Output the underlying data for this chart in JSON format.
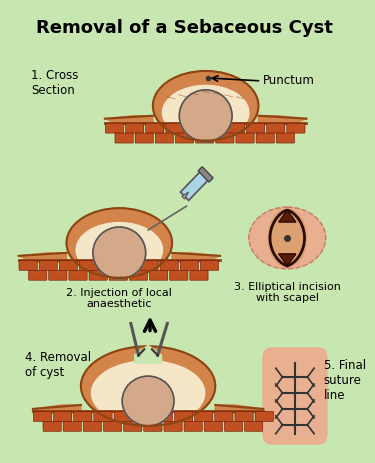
{
  "title": "Removal of a Sebaceous Cyst",
  "background_color": "#c8e6b0",
  "title_fontsize": 13,
  "title_fontweight": "bold",
  "labels": {
    "step1": "1. Cross\nSection",
    "step2": "2. Injection of local\nanaesthetic",
    "step3": "3. Elliptical incision\nwith scapel",
    "step4": "4. Removal\nof cyst",
    "step5": "5. Final\nsuture\nline"
  },
  "punctum_label": "Punctum",
  "skin_color": "#d2844a",
  "cyst_color": "#d4a98a",
  "tissue_color": "#f5e6c8",
  "brick_color": "#c05020",
  "needle_color": "#aad4e8",
  "incision_bg": "#e8b090",
  "suture_bg": "#e8b090",
  "text_color": "#000000"
}
